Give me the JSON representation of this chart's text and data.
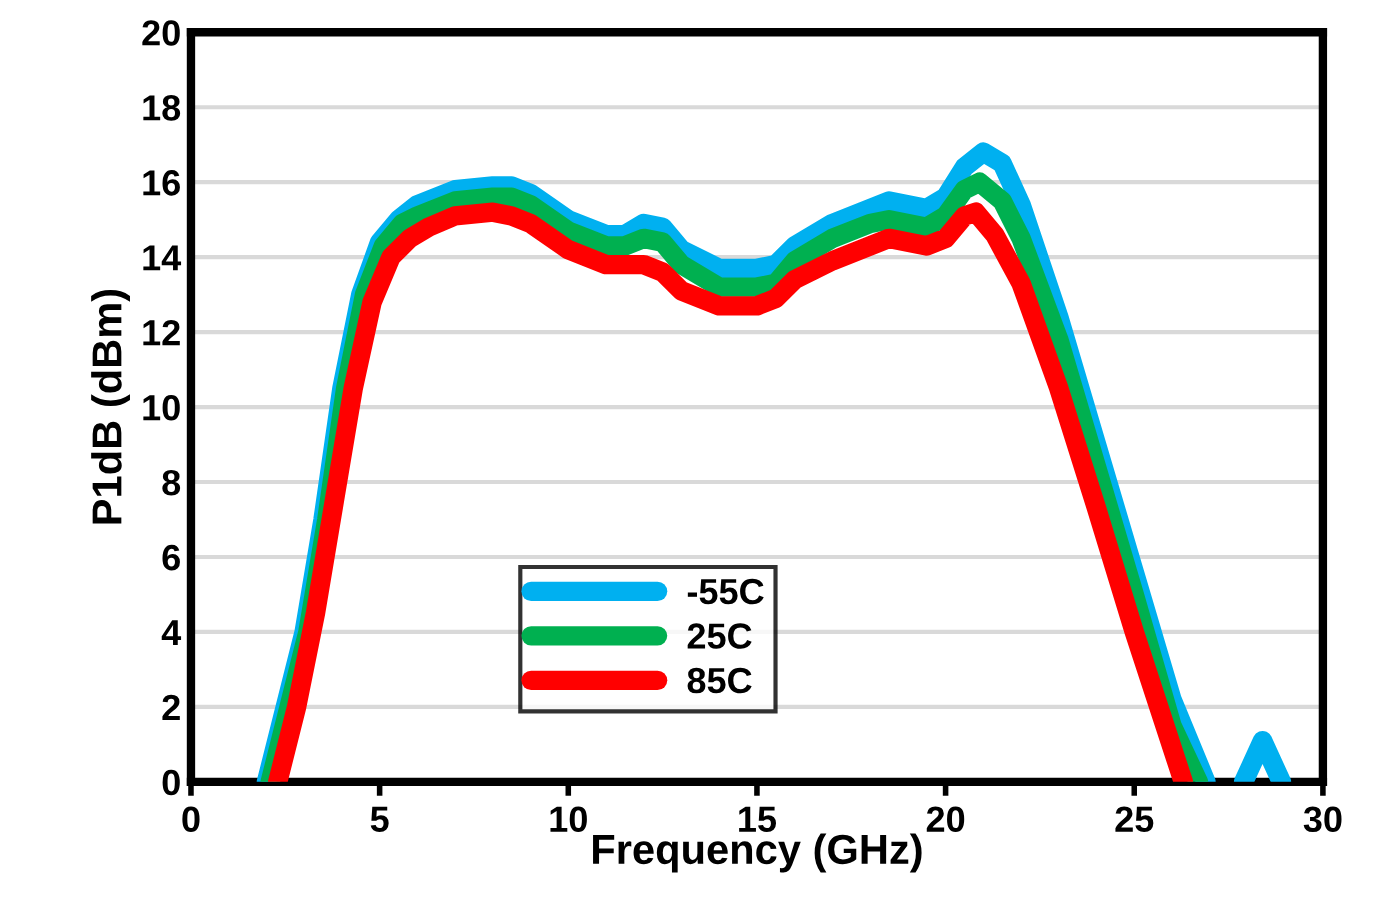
{
  "chart_data": {
    "type": "line",
    "xlabel": "Frequency (GHz)",
    "ylabel": "P1dB (dBm)",
    "xlim": [
      0,
      30
    ],
    "xticks": [
      0,
      5,
      10,
      15,
      20,
      25,
      30
    ],
    "ylim": [
      0,
      20
    ],
    "yticks": [
      0,
      2,
      4,
      6,
      8,
      10,
      12,
      14,
      16,
      18,
      20
    ],
    "grid": "y",
    "legend": "bottom",
    "line_style": "solid",
    "marker": "none",
    "series": [
      {
        "name": "-55C",
        "color": "#00b0f0",
        "x": [
          2.0,
          2.5,
          3.0,
          3.5,
          4.0,
          4.5,
          5.0,
          5.5,
          6.0,
          7.0,
          8.0,
          8.5,
          9.0,
          10.0,
          11.0,
          11.5,
          12.0,
          12.5,
          13.0,
          14.0,
          15.0,
          15.5,
          16.0,
          17.0,
          18.0,
          18.5,
          19.0,
          19.5,
          20.0,
          20.5,
          21.0,
          21.5,
          22.0,
          23.0,
          24.0,
          25.0,
          26.0,
          26.9,
          27.4,
          27.9,
          28.4,
          28.9
        ],
        "values": [
          0,
          2,
          4,
          7,
          10.5,
          13,
          14.4,
          15,
          15.4,
          15.8,
          15.9,
          15.9,
          15.7,
          15,
          14.6,
          14.6,
          14.9,
          14.8,
          14.2,
          13.7,
          13.7,
          13.8,
          14.3,
          14.9,
          15.3,
          15.5,
          15.4,
          15.3,
          15.6,
          16.4,
          16.8,
          16.5,
          15.4,
          12.4,
          9,
          5.6,
          2.2,
          0,
          null,
          0,
          1.1,
          0
        ]
      },
      {
        "name": "25C",
        "color": "#00b050",
        "x": [
          2.1,
          2.6,
          3.1,
          3.6,
          4.1,
          4.6,
          5.1,
          5.6,
          6.0,
          7.0,
          8.0,
          8.5,
          9.0,
          10.0,
          11.0,
          11.5,
          12.0,
          12.5,
          13.0,
          14.0,
          15.0,
          15.5,
          16.0,
          17.0,
          18.0,
          18.5,
          19.0,
          19.5,
          20.0,
          20.5,
          20.9,
          21.5,
          22.0,
          23.0,
          24.0,
          25.0,
          26.0,
          26.7
        ],
        "values": [
          0,
          2,
          4,
          7,
          10.5,
          13,
          14.3,
          14.9,
          15.1,
          15.5,
          15.6,
          15.6,
          15.4,
          14.7,
          14.3,
          14.3,
          14.5,
          14.4,
          13.8,
          13.2,
          13.2,
          13.3,
          13.9,
          14.5,
          14.9,
          15.0,
          14.9,
          14.8,
          15.1,
          15.8,
          16.0,
          15.5,
          14.5,
          11.8,
          8.4,
          5.0,
          1.5,
          0
        ]
      },
      {
        "name": "85C",
        "color": "#ff0000",
        "x": [
          2.3,
          2.8,
          3.3,
          3.8,
          4.3,
          4.8,
          5.3,
          5.8,
          6.3,
          7.0,
          8.0,
          8.5,
          9.0,
          10.0,
          11.0,
          11.5,
          12.0,
          12.5,
          13.0,
          14.0,
          15.0,
          15.5,
          16.0,
          17.0,
          18.0,
          18.5,
          19.0,
          19.5,
          20.0,
          20.5,
          20.8,
          21.3,
          22.0,
          23.0,
          24.0,
          25.0,
          26.3
        ],
        "values": [
          0,
          2,
          4.5,
          7.5,
          10.5,
          12.8,
          14,
          14.5,
          14.8,
          15.1,
          15.2,
          15.1,
          14.9,
          14.2,
          13.8,
          13.8,
          13.8,
          13.6,
          13.1,
          12.7,
          12.7,
          12.9,
          13.4,
          13.9,
          14.3,
          14.5,
          14.4,
          14.3,
          14.5,
          15.1,
          15.2,
          14.6,
          13.3,
          10.5,
          7.3,
          4.0,
          0
        ]
      }
    ]
  }
}
